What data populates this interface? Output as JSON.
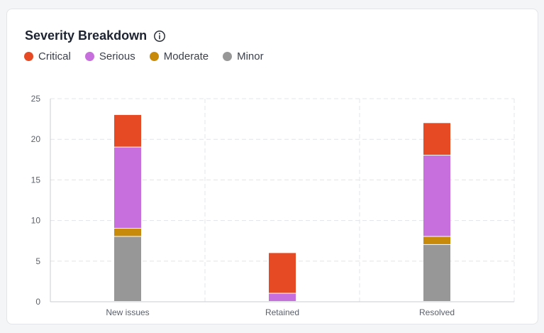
{
  "card": {
    "title": "Severity Breakdown",
    "info_icon": "info-circle-icon"
  },
  "colors": {
    "critical": "#e64a25",
    "serious": "#c76fdc",
    "moderate": "#c88a0a",
    "minor": "#979797"
  },
  "chart_data": {
    "type": "bar",
    "stacked": true,
    "title": "Severity Breakdown",
    "xlabel": "",
    "ylabel": "",
    "categories": [
      "New issues",
      "Retained",
      "Resolved"
    ],
    "series": [
      {
        "name": "Minor",
        "key": "minor",
        "values": [
          8,
          0,
          7
        ]
      },
      {
        "name": "Moderate",
        "key": "moderate",
        "values": [
          1,
          0,
          1
        ]
      },
      {
        "name": "Serious",
        "key": "serious",
        "values": [
          10,
          1,
          10
        ]
      },
      {
        "name": "Critical",
        "key": "critical",
        "values": [
          4,
          5,
          4
        ]
      }
    ],
    "legend": [
      {
        "name": "Critical",
        "key": "critical"
      },
      {
        "name": "Serious",
        "key": "serious"
      },
      {
        "name": "Moderate",
        "key": "moderate"
      },
      {
        "name": "Minor",
        "key": "minor"
      }
    ],
    "ylim": [
      0,
      25
    ],
    "yticks": [
      0,
      5,
      10,
      15,
      20,
      25
    ],
    "grid": true,
    "legend_position": "top-left"
  }
}
